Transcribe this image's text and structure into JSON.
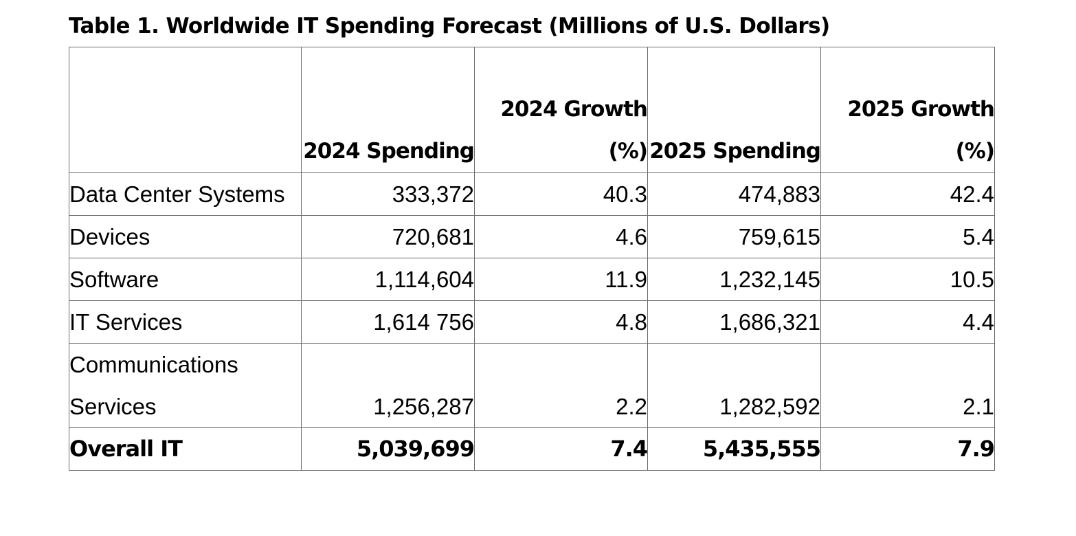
{
  "table": {
    "caption": "Table 1. Worldwide IT Spending Forecast (Millions of U.S. Dollars)",
    "headers": [
      "",
      "2024 Spending",
      "2024 Growth (%)",
      "2025 Spending",
      "2025 Growth (%)"
    ],
    "rows": [
      {
        "segment": "Data Center Systems",
        "spend_2024": "333,372",
        "growth_2024": "40.3",
        "spend_2025": "474,883",
        "growth_2025": "42.4"
      },
      {
        "segment": "Devices",
        "spend_2024": "720,681",
        "growth_2024": "4.6",
        "spend_2025": "759,615",
        "growth_2025": "5.4"
      },
      {
        "segment": "Software",
        "spend_2024": "1,114,604",
        "growth_2024": "11.9",
        "spend_2025": "1,232,145",
        "growth_2025": "10.5"
      },
      {
        "segment": "IT Services",
        "spend_2024": "1,614 756",
        "growth_2024": "4.8",
        "spend_2025": "1,686,321",
        "growth_2025": "4.4"
      },
      {
        "segment": "Communications Services",
        "spend_2024": "1,256,287",
        "growth_2024": "2.2",
        "spend_2025": "1,282,592",
        "growth_2025": "2.1"
      }
    ],
    "total": {
      "segment": "Overall IT",
      "spend_2024": "5,039,699",
      "growth_2024": "7.4",
      "spend_2025": "5,435,555",
      "growth_2025": "7.9"
    }
  }
}
